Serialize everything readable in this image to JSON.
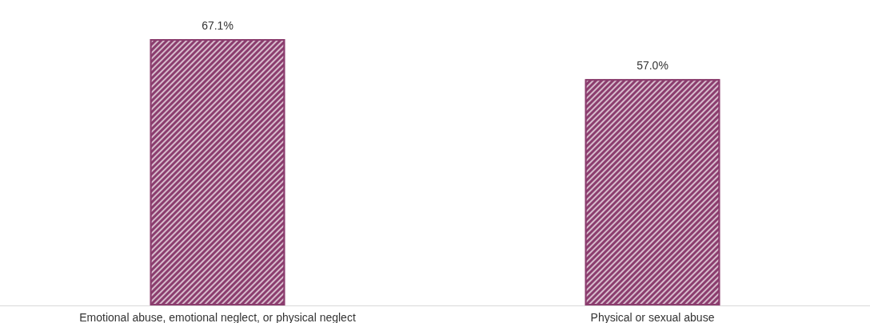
{
  "chart_data": {
    "type": "bar",
    "categories": [
      "Emotional abuse, emotional neglect, or physical neglect",
      "Physical or sexual abuse"
    ],
    "values": [
      67.1,
      57.0
    ],
    "value_labels": [
      "67.1%",
      "57.0%"
    ],
    "color": "#8b3d6e"
  }
}
